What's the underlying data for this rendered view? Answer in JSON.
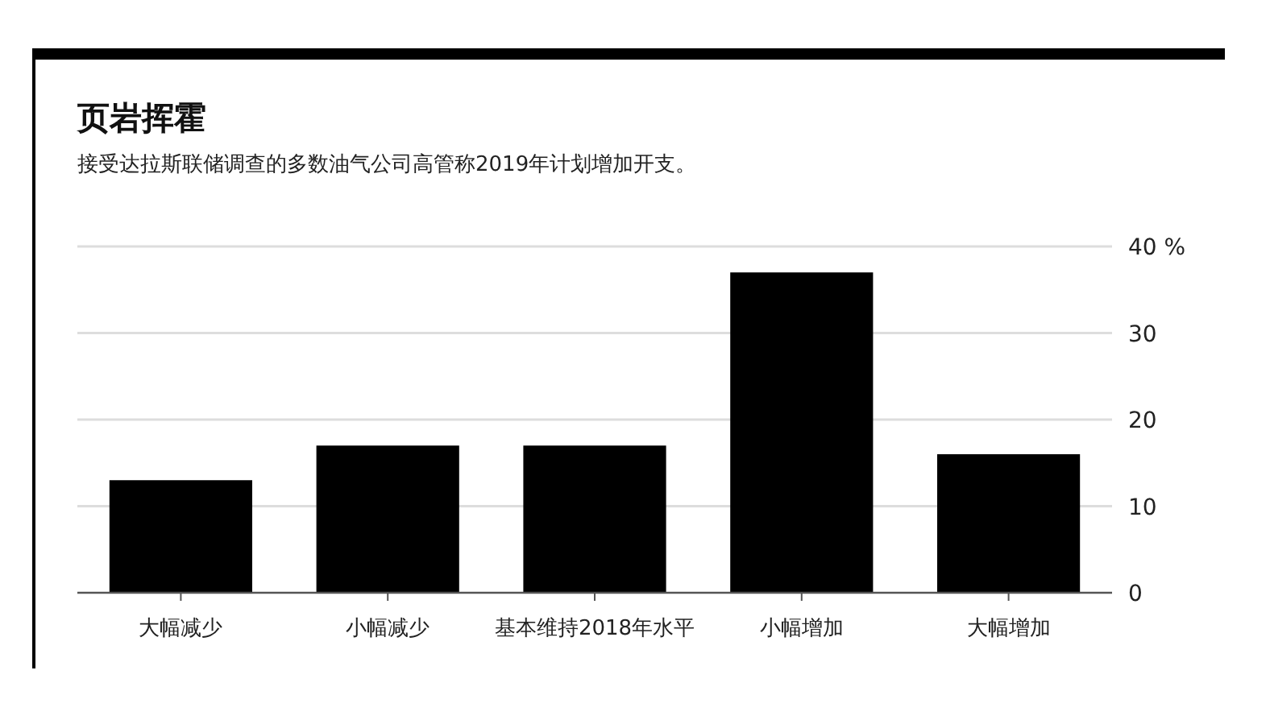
{
  "chart_data": {
    "type": "bar",
    "title": "页岩挥霍",
    "subtitle": "接受达拉斯联储调查的多数油气公司高管称2019年计划增加开支。",
    "categories": [
      "大幅减少",
      "小幅减少",
      "基本维持2018年水平",
      "小幅增加",
      "大幅增加"
    ],
    "values": [
      13,
      17,
      17,
      37,
      16
    ],
    "color": "#000000",
    "ylim": [
      0,
      40
    ],
    "yticks": [
      0,
      10,
      20,
      30,
      {
        "value": 40,
        "label": "40 %"
      }
    ],
    "grid": "y"
  }
}
